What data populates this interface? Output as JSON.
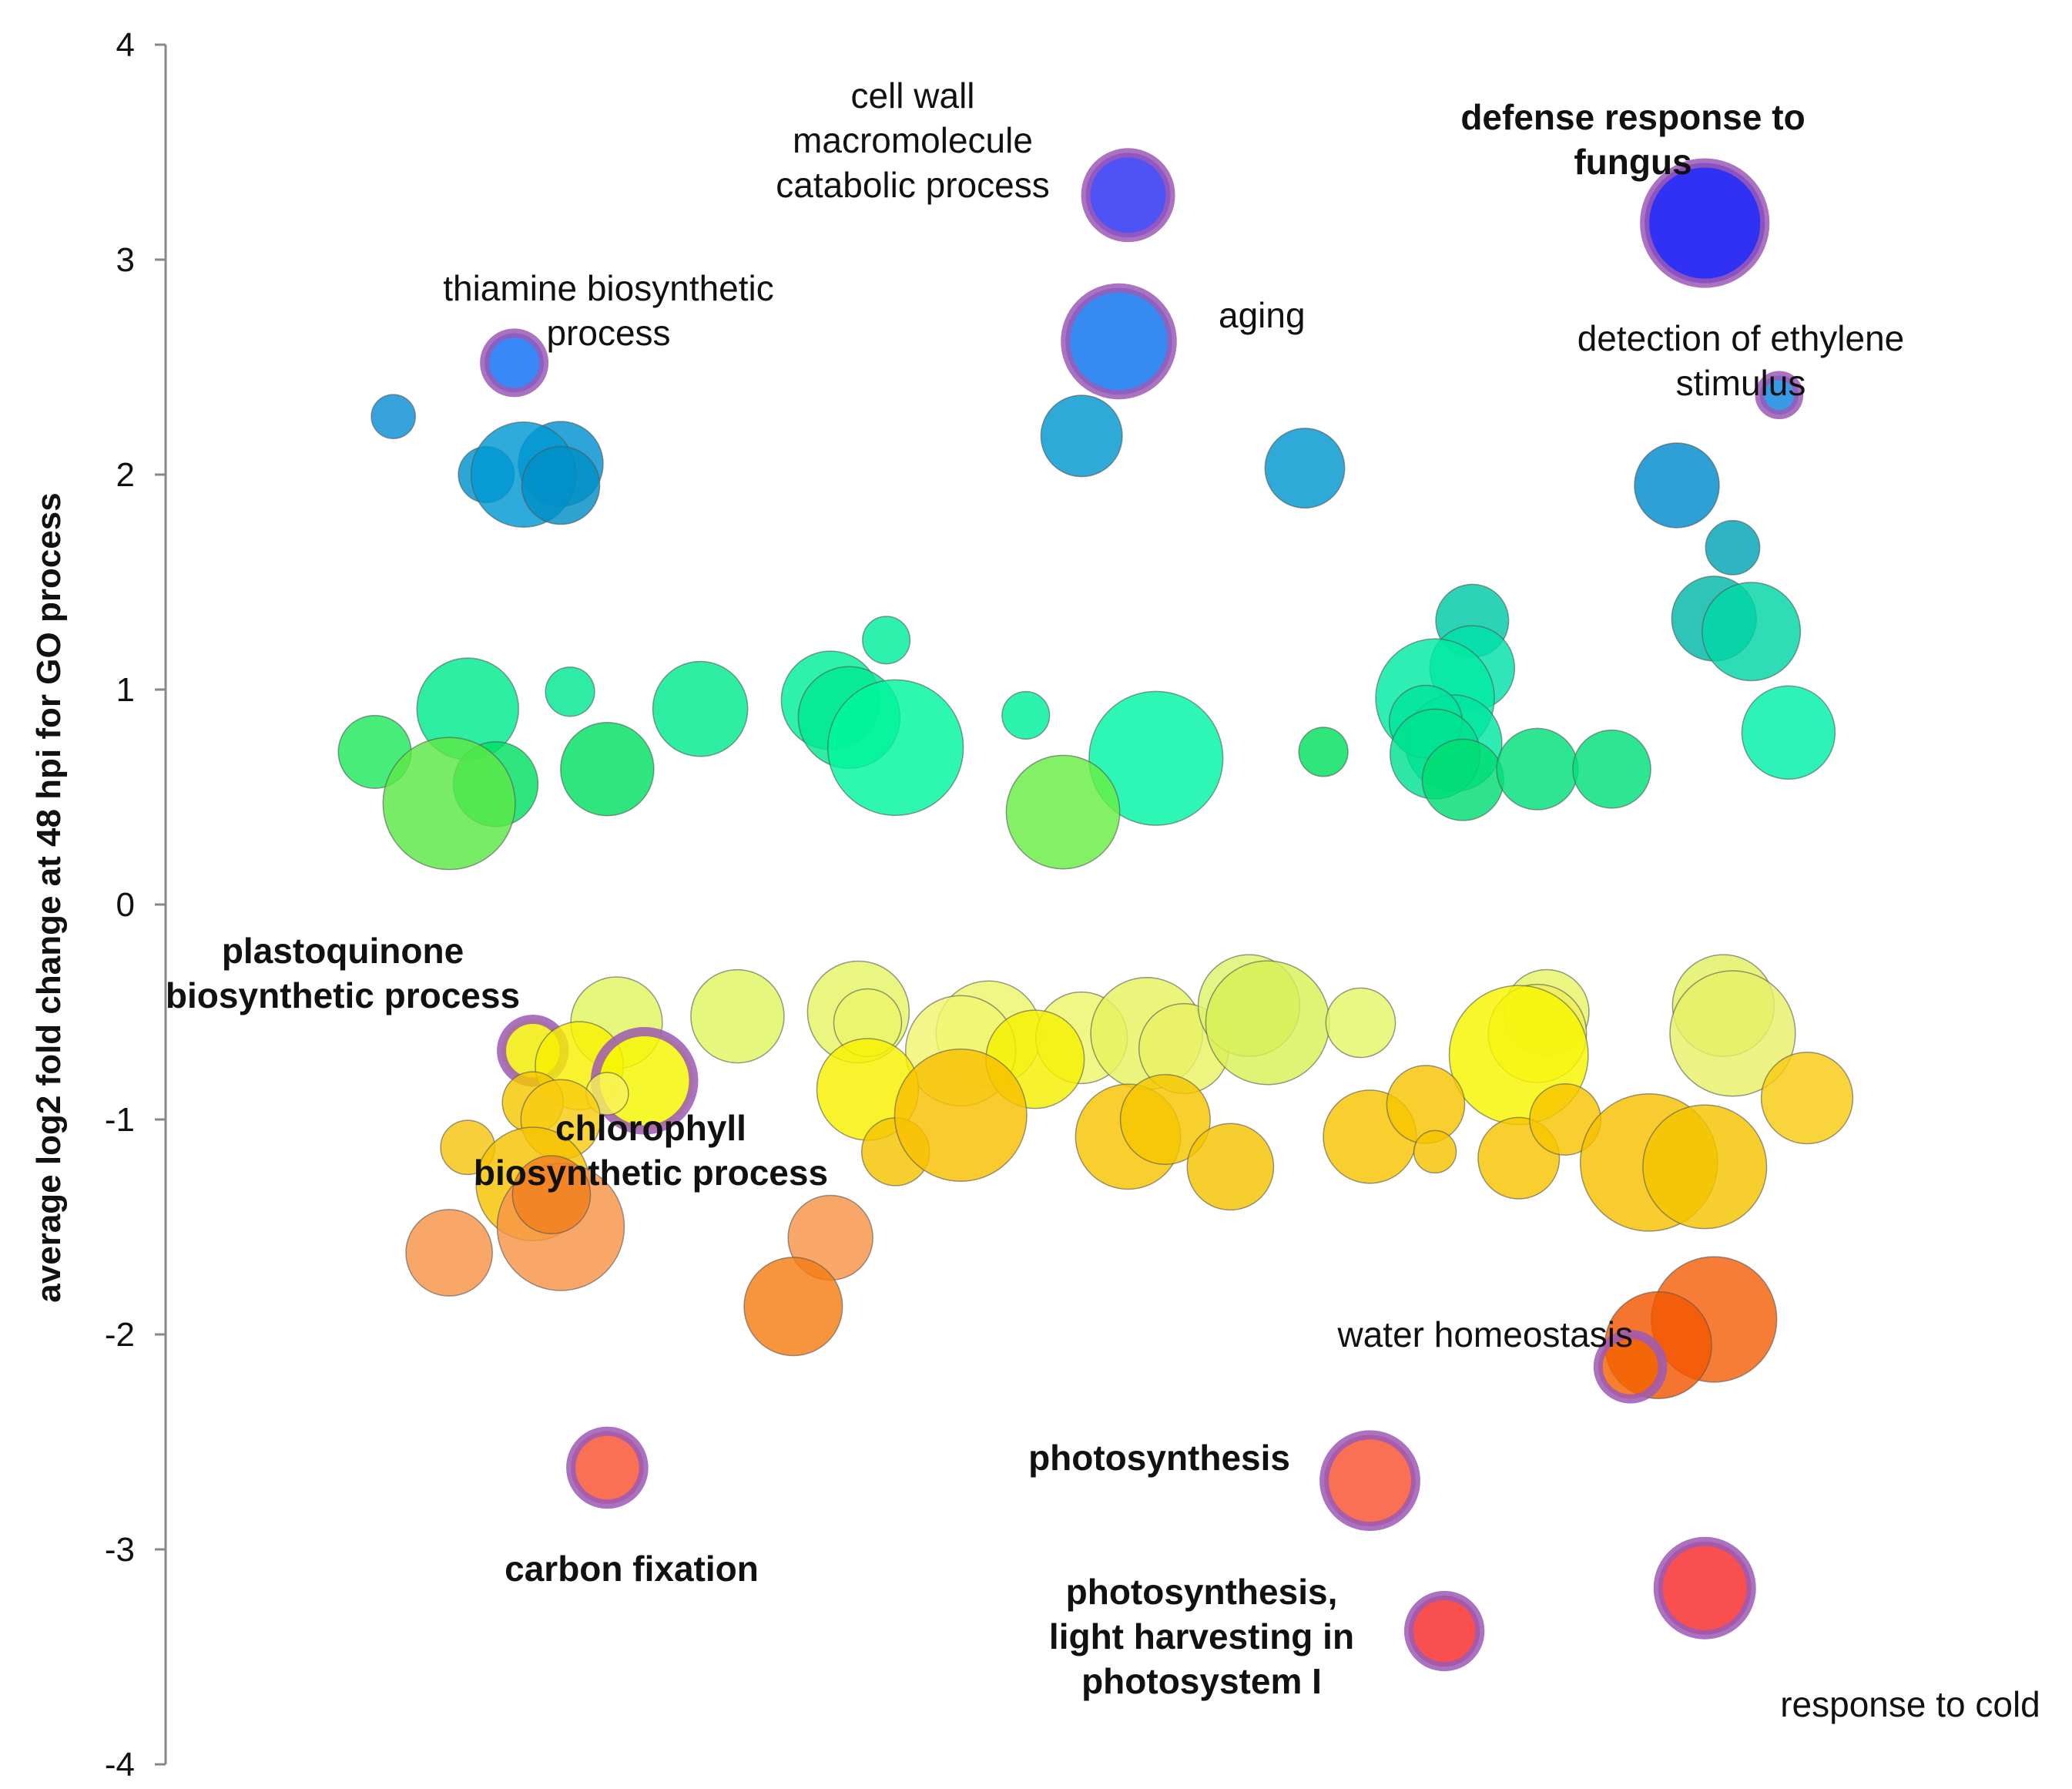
{
  "chart_data": {
    "type": "scatter",
    "subtype": "bubble",
    "title": "",
    "xlabel": "",
    "ylabel": "average log2 fold change at 48 hpi for GO process",
    "ylim": [
      -4,
      4
    ],
    "yticks": [
      4,
      3,
      2,
      1,
      0,
      -1,
      -2,
      -3,
      -4
    ],
    "ytick_labels": [
      "4",
      "3",
      "2",
      "1",
      "0",
      "-1",
      "-2",
      "-3",
      "-4"
    ],
    "xlim": [
      0,
      100
    ],
    "grid": false,
    "colors": {
      "highlight_ring": "#9b59b6",
      "bubble_stroke": "#555555",
      "axis": "#888888"
    },
    "bubbles": [
      {
        "x": 11,
        "y": 2.27,
        "size": 2.6,
        "color": "#0a8fd6"
      },
      {
        "x": 20,
        "y": 2.05,
        "size": 5.0,
        "color": "#0090d0"
      },
      {
        "x": 16,
        "y": 2.0,
        "size": 3.3,
        "color": "#0093cc"
      },
      {
        "x": 18,
        "y": 2.0,
        "size": 6.2,
        "color": "#0099d2"
      },
      {
        "x": 20,
        "y": 1.95,
        "size": 4.6,
        "color": "#008fc6"
      },
      {
        "x": 17.5,
        "y": 2.52,
        "size": 3.5,
        "color": "#0d6ef5",
        "highlight": true
      },
      {
        "x": 48,
        "y": 2.18,
        "size": 4.8,
        "color": "#0096d0"
      },
      {
        "x": 50,
        "y": 2.62,
        "size": 6.3,
        "color": "#0a72f0",
        "highlight": true
      },
      {
        "x": 50.5,
        "y": 3.3,
        "size": 5.0,
        "color": "#2a2df0",
        "highlight": true
      },
      {
        "x": 60,
        "y": 2.03,
        "size": 4.7,
        "color": "#0096cf"
      },
      {
        "x": 81.5,
        "y": 3.17,
        "size": 7.1,
        "color": "#0404f0",
        "highlight": true
      },
      {
        "x": 85.5,
        "y": 2.37,
        "size": 2.3,
        "color": "#0e85e0",
        "highlight": true
      },
      {
        "x": 80,
        "y": 1.95,
        "size": 5.0,
        "color": "#008bcc"
      },
      {
        "x": 83,
        "y": 1.66,
        "size": 3.2,
        "color": "#00a4b4"
      },
      {
        "x": 82,
        "y": 1.33,
        "size": 5.0,
        "color": "#00b8a8"
      },
      {
        "x": 84,
        "y": 1.27,
        "size": 5.8,
        "color": "#00d6a6"
      },
      {
        "x": 86,
        "y": 0.8,
        "size": 5.5,
        "color": "#00f0a8"
      },
      {
        "x": 69,
        "y": 1.32,
        "size": 4.3,
        "color": "#00c8a4"
      },
      {
        "x": 69,
        "y": 1.1,
        "size": 5.0,
        "color": "#00e0a8"
      },
      {
        "x": 67,
        "y": 0.96,
        "size": 7.0,
        "color": "#00eaa2"
      },
      {
        "x": 68,
        "y": 0.75,
        "size": 5.7,
        "color": "#00e6a0"
      },
      {
        "x": 66.5,
        "y": 0.85,
        "size": 4.3,
        "color": "#00e49c"
      },
      {
        "x": 67,
        "y": 0.7,
        "size": 5.3,
        "color": "#00e290"
      },
      {
        "x": 68.5,
        "y": 0.58,
        "size": 4.8,
        "color": "#00dd72"
      },
      {
        "x": 72.5,
        "y": 0.63,
        "size": 4.8,
        "color": "#00e07a"
      },
      {
        "x": 76.5,
        "y": 0.63,
        "size": 4.6,
        "color": "#00e07a"
      },
      {
        "x": 61,
        "y": 0.71,
        "size": 2.9,
        "color": "#00e05c"
      },
      {
        "x": 52,
        "y": 0.68,
        "size": 7.9,
        "color": "#00f5a6"
      },
      {
        "x": 45,
        "y": 0.88,
        "size": 2.8,
        "color": "#00f09a"
      },
      {
        "x": 47,
        "y": 0.43,
        "size": 6.7,
        "color": "#66ee44"
      },
      {
        "x": 37.5,
        "y": 1.23,
        "size": 2.8,
        "color": "#00ee9c"
      },
      {
        "x": 34.5,
        "y": 0.95,
        "size": 5.8,
        "color": "#00ee98"
      },
      {
        "x": 35.5,
        "y": 0.87,
        "size": 6.0,
        "color": "#00e890"
      },
      {
        "x": 38,
        "y": 0.73,
        "size": 8.0,
        "color": "#00f59e"
      },
      {
        "x": 27.5,
        "y": 0.91,
        "size": 5.6,
        "color": "#00ea90"
      },
      {
        "x": 20.5,
        "y": 0.99,
        "size": 2.9,
        "color": "#00e892"
      },
      {
        "x": 15,
        "y": 0.91,
        "size": 6.0,
        "color": "#00ea90"
      },
      {
        "x": 16.5,
        "y": 0.56,
        "size": 5.0,
        "color": "#00e060"
      },
      {
        "x": 22.5,
        "y": 0.63,
        "size": 5.5,
        "color": "#00e060"
      },
      {
        "x": 10,
        "y": 0.71,
        "size": 4.3,
        "color": "#1ee85c"
      },
      {
        "x": 14,
        "y": 0.47,
        "size": 7.8,
        "color": "#5be845"
      },
      {
        "x": 23,
        "y": -0.55,
        "size": 5.4,
        "color": "#e2f55e"
      },
      {
        "x": 29.5,
        "y": -0.52,
        "size": 5.5,
        "color": "#e0f560"
      },
      {
        "x": 36,
        "y": -0.5,
        "size": 6.0,
        "color": "#e4f565"
      },
      {
        "x": 36.5,
        "y": -0.55,
        "size": 4.0,
        "color": "#ecf56a"
      },
      {
        "x": 43,
        "y": -0.6,
        "size": 6.2,
        "color": "#eef56a"
      },
      {
        "x": 41.5,
        "y": -0.68,
        "size": 6.5,
        "color": "#f0f570"
      },
      {
        "x": 48,
        "y": -0.62,
        "size": 5.4,
        "color": "#eef56a"
      },
      {
        "x": 51.5,
        "y": -0.6,
        "size": 6.6,
        "color": "#e6f35e"
      },
      {
        "x": 53.5,
        "y": -0.67,
        "size": 5.3,
        "color": "#e9f363"
      },
      {
        "x": 57,
        "y": -0.47,
        "size": 6.0,
        "color": "#dcf36a"
      },
      {
        "x": 58,
        "y": -0.55,
        "size": 7.3,
        "color": "#d8f055"
      },
      {
        "x": 63,
        "y": -0.55,
        "size": 4.1,
        "color": "#e4f568"
      },
      {
        "x": 73,
        "y": -0.5,
        "size": 5.0,
        "color": "#e6f366"
      },
      {
        "x": 72.5,
        "y": -0.6,
        "size": 5.8,
        "color": "#eeef58"
      },
      {
        "x": 71.5,
        "y": -0.7,
        "size": 8.2,
        "color": "#f7f500"
      },
      {
        "x": 82.5,
        "y": -0.47,
        "size": 6.0,
        "color": "#e0f060"
      },
      {
        "x": 83,
        "y": -0.6,
        "size": 7.4,
        "color": "#e8f068"
      },
      {
        "x": 18.5,
        "y": -0.68,
        "size": 3.7,
        "color": "#f0ec00",
        "highlight": true
      },
      {
        "x": 21,
        "y": -0.75,
        "size": 5.2,
        "color": "#f6f000"
      },
      {
        "x": 24.5,
        "y": -0.82,
        "size": 5.8,
        "color": "#f5f500",
        "highlight": true
      },
      {
        "x": 22.5,
        "y": -0.88,
        "size": 2.5,
        "color": "#f8f25c"
      },
      {
        "x": 36.5,
        "y": -0.86,
        "size": 6.0,
        "color": "#f8f000"
      },
      {
        "x": 45.5,
        "y": -0.72,
        "size": 5.8,
        "color": "#f4f000"
      },
      {
        "x": 18.5,
        "y": -0.92,
        "size": 3.6,
        "color": "#f5c800"
      },
      {
        "x": 20,
        "y": -1.0,
        "size": 4.7,
        "color": "#f8cc10"
      },
      {
        "x": 15,
        "y": -1.13,
        "size": 3.2,
        "color": "#f4c410"
      },
      {
        "x": 18.5,
        "y": -1.3,
        "size": 6.7,
        "color": "#f6c200"
      },
      {
        "x": 38,
        "y": -1.15,
        "size": 4.0,
        "color": "#f4c400"
      },
      {
        "x": 41.5,
        "y": -0.98,
        "size": 7.8,
        "color": "#f8c000"
      },
      {
        "x": 50.5,
        "y": -1.08,
        "size": 6.2,
        "color": "#f6c400"
      },
      {
        "x": 52.5,
        "y": -1.0,
        "size": 5.3,
        "color": "#f6c600"
      },
      {
        "x": 56,
        "y": -1.22,
        "size": 5.1,
        "color": "#f4c400"
      },
      {
        "x": 63.5,
        "y": -1.08,
        "size": 5.5,
        "color": "#f6c400"
      },
      {
        "x": 66.5,
        "y": -0.93,
        "size": 4.6,
        "color": "#f6c400"
      },
      {
        "x": 67,
        "y": -1.15,
        "size": 2.5,
        "color": "#f4c400"
      },
      {
        "x": 71.5,
        "y": -1.18,
        "size": 4.8,
        "color": "#f6c400"
      },
      {
        "x": 74,
        "y": -1.0,
        "size": 4.2,
        "color": "#f6c400"
      },
      {
        "x": 78.5,
        "y": -1.2,
        "size": 8.1,
        "color": "#f6c000"
      },
      {
        "x": 81.5,
        "y": -1.22,
        "size": 7.3,
        "color": "#f4c400"
      },
      {
        "x": 87,
        "y": -0.9,
        "size": 5.4,
        "color": "#f8cc10"
      },
      {
        "x": 14,
        "y": -1.62,
        "size": 5.1,
        "color": "#f89448"
      },
      {
        "x": 20,
        "y": -1.5,
        "size": 7.5,
        "color": "#f89448"
      },
      {
        "x": 19.5,
        "y": -1.35,
        "size": 4.6,
        "color": "#f08020"
      },
      {
        "x": 34.5,
        "y": -1.55,
        "size": 5.0,
        "color": "#f89448"
      },
      {
        "x": 32.5,
        "y": -1.87,
        "size": 5.8,
        "color": "#f47e14"
      },
      {
        "x": 82,
        "y": -1.93,
        "size": 7.4,
        "color": "#f4600a"
      },
      {
        "x": 79,
        "y": -2.05,
        "size": 6.3,
        "color": "#f35700"
      },
      {
        "x": 77.5,
        "y": -2.15,
        "size": 3.8,
        "color": "#f46400",
        "highlight": true
      },
      {
        "x": 22.5,
        "y": -2.62,
        "size": 4.3,
        "color": "#f85030",
        "highlight": true
      },
      {
        "x": 63.5,
        "y": -2.68,
        "size": 5.4,
        "color": "#f85030",
        "highlight": true
      },
      {
        "x": 67.5,
        "y": -3.38,
        "size": 4.2,
        "color": "#f82828",
        "highlight": true
      },
      {
        "x": 81.5,
        "y": -3.18,
        "size": 5.5,
        "color": "#f82828",
        "highlight": true
      }
    ],
    "annotations": [
      {
        "text": "cell wall\nmacromolecule\ncatabolic process",
        "bold": false
      },
      {
        "text": "defense response to\nfungus",
        "bold": true
      },
      {
        "text": "thiamine  biosynthetic\nprocess",
        "bold": false
      },
      {
        "text": "aging",
        "bold": false
      },
      {
        "text": "detection of ethylene\nstimulus",
        "bold": false
      },
      {
        "text": "plastoquinone\nbiosynthetic process",
        "bold": true
      },
      {
        "text": "chlorophyll\nbiosynthetic process",
        "bold": true
      },
      {
        "text": "water homeostasis",
        "bold": false
      },
      {
        "text": "photosynthesis",
        "bold": true
      },
      {
        "text": "carbon fixation",
        "bold": true
      },
      {
        "text": "photosynthesis,\nlight harvesting in\nphotosystem I",
        "bold": true
      },
      {
        "text": "response to cold",
        "bold": false
      }
    ]
  }
}
